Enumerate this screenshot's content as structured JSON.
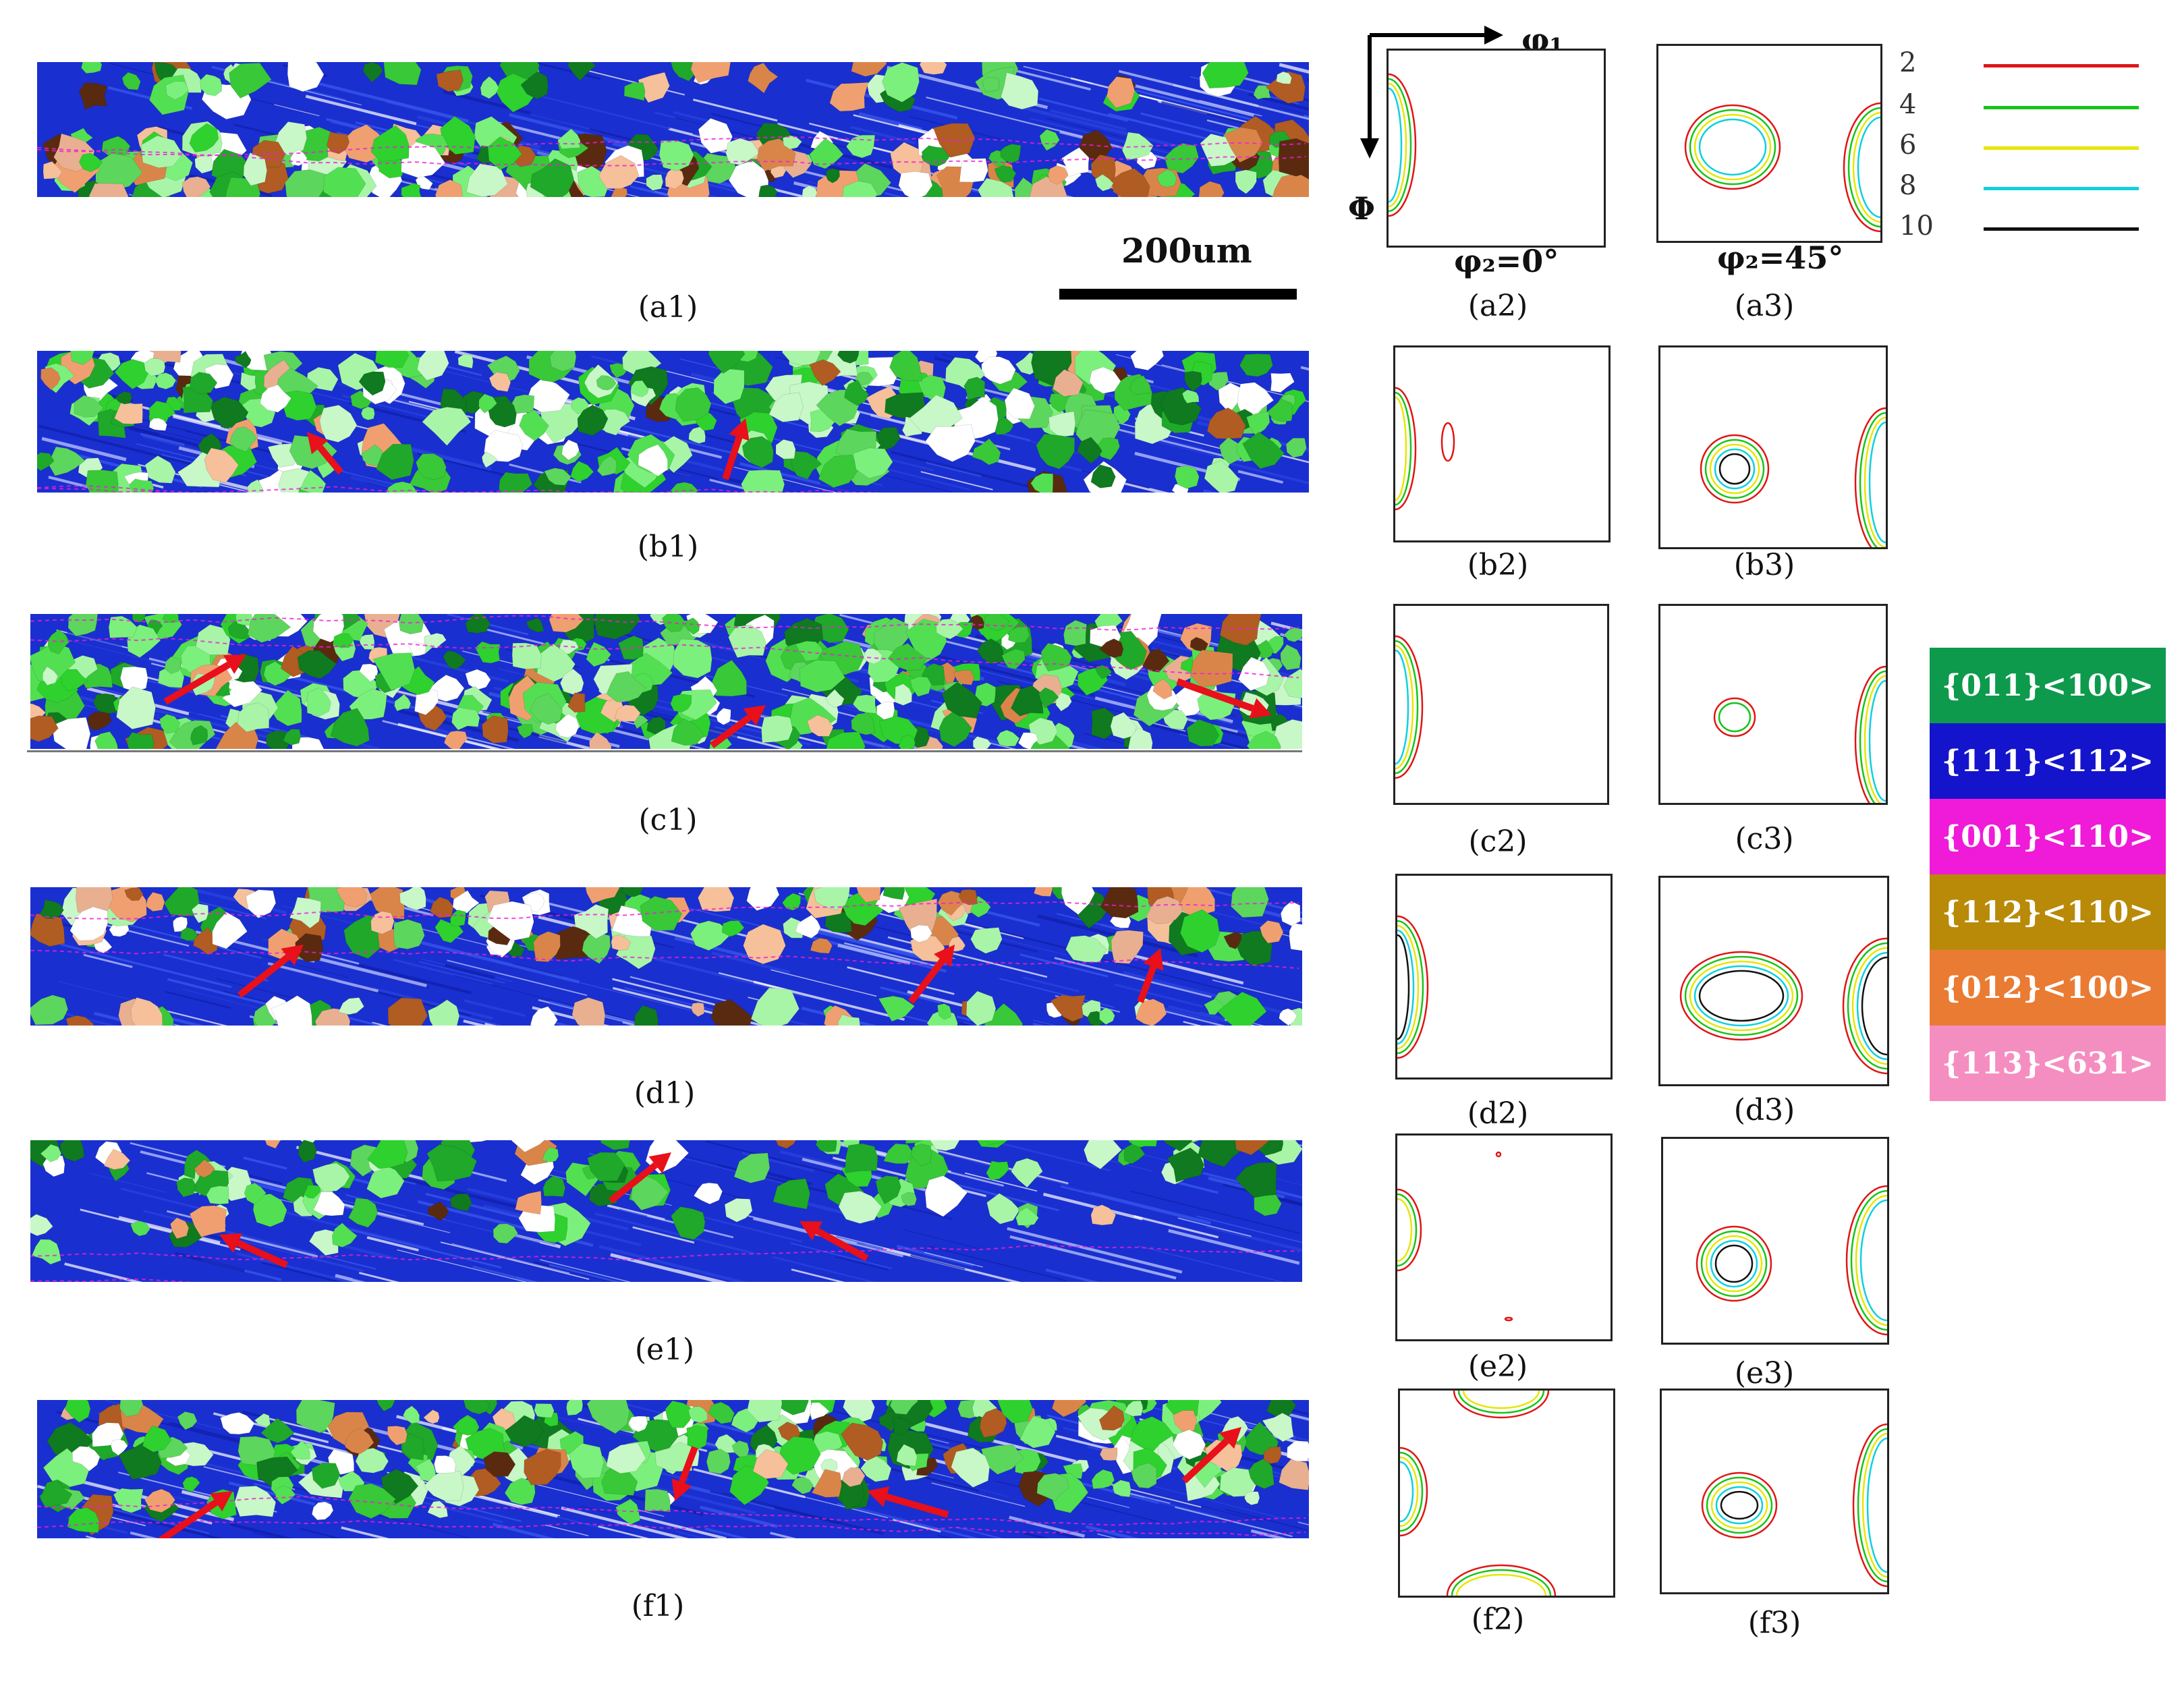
{
  "panels": [
    {
      "map_label": "(a1)",
      "odf0_label": "(a2)",
      "odf45_label": "(a3)"
    },
    {
      "map_label": "(b1)",
      "odf0_label": "(b2)",
      "odf45_label": "(b3)"
    },
    {
      "map_label": "(c1)",
      "odf0_label": "(c2)",
      "odf45_label": "(c3)"
    },
    {
      "map_label": "(d1)",
      "odf0_label": "(d2)",
      "odf45_label": "(d3)"
    },
    {
      "map_label": "(e1)",
      "odf0_label": "(e2)",
      "odf45_label": "(e3)"
    },
    {
      "map_label": "(f1)",
      "odf0_label": "(f2)",
      "odf45_label": "(f3)"
    }
  ],
  "scale_bar": {
    "label": "200um"
  },
  "axes": {
    "phi1": "φ₁",
    "Phi": "Φ",
    "phi2_0": "φ₂=0°",
    "phi2_45": "φ₂=45°"
  },
  "contour_legend": [
    {
      "level": "2",
      "color": "#e01515"
    },
    {
      "level": "4",
      "color": "#19c419"
    },
    {
      "level": "6",
      "color": "#e6e600"
    },
    {
      "level": "8",
      "color": "#10d0e0"
    },
    {
      "level": "10",
      "color": "#111111"
    }
  ],
  "texture_legend": [
    {
      "label": "{011}<100>",
      "color": "#0d9a4c"
    },
    {
      "label": "{111}<112>",
      "color": "#1414cc"
    },
    {
      "label": "{001}<110>",
      "color": "#ef1bd8"
    },
    {
      "label": "{112}<110>",
      "color": "#b88a08"
    },
    {
      "label": "{012}<100>",
      "color": "#ea7b33"
    },
    {
      "label": "{113}<631>",
      "color": "#f58ec0"
    }
  ]
}
